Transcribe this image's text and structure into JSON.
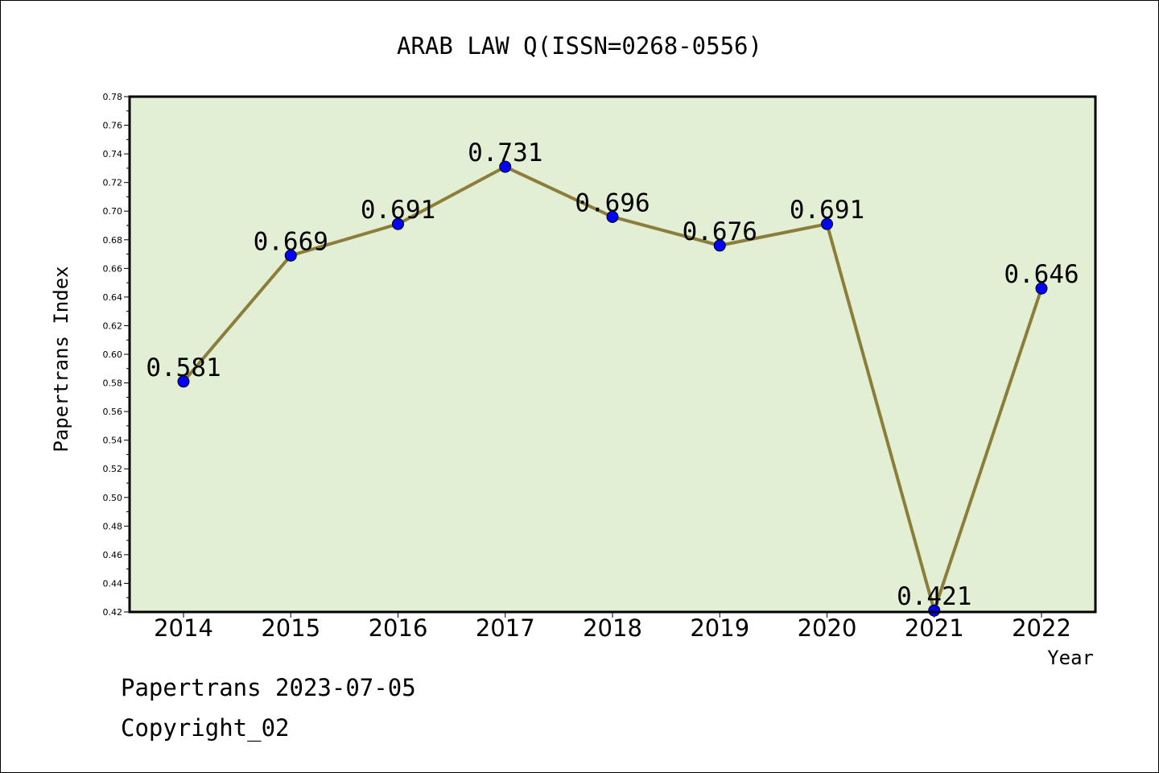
{
  "chart_data": {
    "type": "line",
    "title": "ARAB LAW Q(ISSN=0268-0556)",
    "xlabel": "Year",
    "ylabel": "Papertrans Index",
    "x": [
      "2014",
      "2015",
      "2016",
      "2017",
      "2018",
      "2019",
      "2020",
      "2021",
      "2022"
    ],
    "series": [
      {
        "values": [
          0.581,
          0.669,
          0.691,
          0.731,
          0.696,
          0.676,
          0.691,
          0.421,
          0.646
        ],
        "labels": [
          "0.581",
          "0.669",
          "0.691",
          "0.731",
          "0.696",
          "0.676",
          "0.691",
          "0.421",
          "0.646"
        ]
      }
    ],
    "ylim": [
      0.42,
      0.78
    ],
    "yticks": [
      "0.42",
      "0.44",
      "0.46",
      "0.48",
      "0.50",
      "0.52",
      "0.54",
      "0.56",
      "0.58",
      "0.60",
      "0.62",
      "0.64",
      "0.66",
      "0.68",
      "0.70",
      "0.72",
      "0.74",
      "0.76",
      "0.78"
    ],
    "grid": false,
    "colors": {
      "plot_background": "#e2efd4",
      "line": "#8c7e3a",
      "marker": "#0000ff"
    }
  },
  "footer": {
    "line1": "Papertrans 2023-07-05",
    "line2": "Copyright_02"
  }
}
